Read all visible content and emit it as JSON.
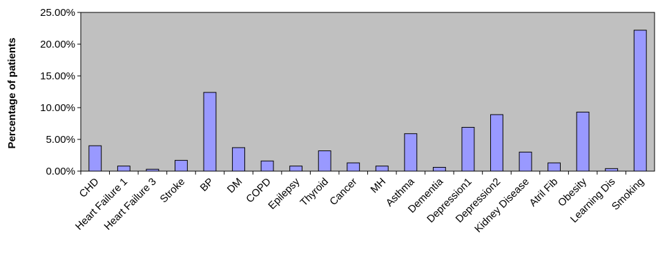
{
  "chart_data": {
    "type": "bar",
    "title": "",
    "xlabel": "",
    "ylabel": "Percentage of patients",
    "ylim": [
      0,
      25
    ],
    "yticks": [
      "0.00%",
      "5.00%",
      "10.00%",
      "15.00%",
      "20.00%",
      "25.00%"
    ],
    "categories": [
      "CHD",
      "Heart Failure 1",
      "Heart Failure 3",
      "Stroke",
      "BP",
      "DM",
      "COPD",
      "Epilepsy",
      "Thyroid",
      "Cancer",
      "MH",
      "Asthma",
      "Dementia",
      "Depression1",
      "Depression2",
      "Kidney Disease",
      "Atril Fib",
      "Obesity",
      "Learning Dis",
      "Smoking"
    ],
    "values": [
      4.0,
      0.8,
      0.3,
      1.7,
      12.4,
      3.7,
      1.6,
      0.8,
      3.2,
      1.3,
      0.8,
      5.9,
      0.6,
      6.9,
      8.9,
      3.0,
      1.3,
      9.3,
      0.4,
      22.2
    ],
    "grid": false,
    "legend": "none",
    "colors": {
      "plot_bg": "#c0c0c0",
      "bar_fill": "#9999ff",
      "bar_stroke": "#000000"
    }
  }
}
